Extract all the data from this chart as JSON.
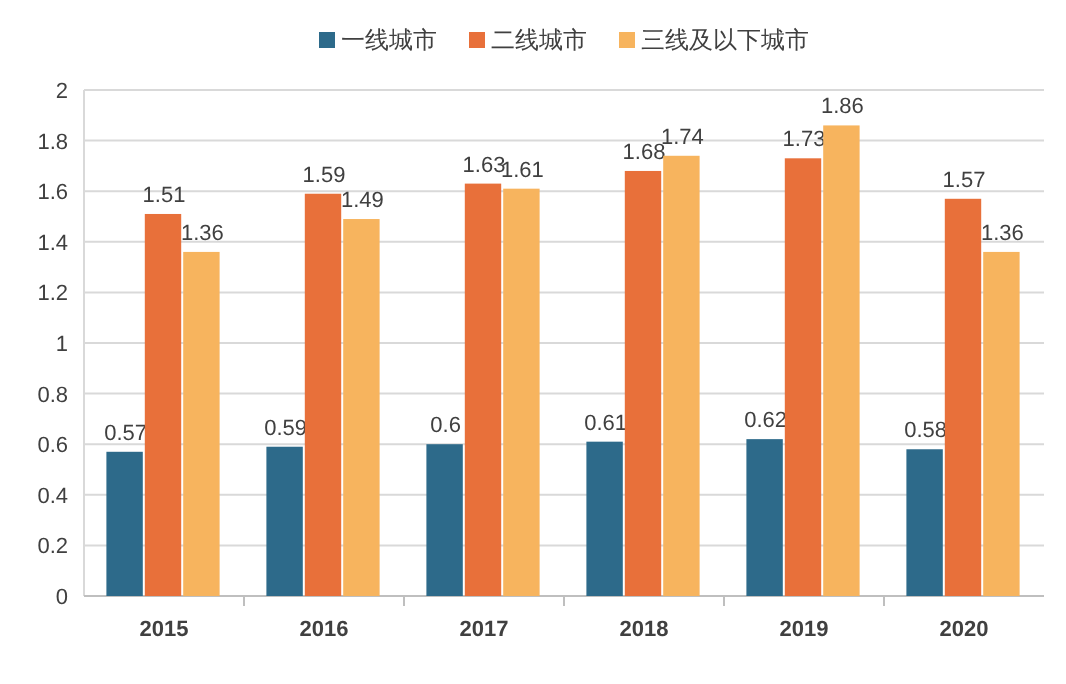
{
  "chart_data": {
    "type": "bar",
    "categories": [
      "2015",
      "2016",
      "2017",
      "2018",
      "2019",
      "2020"
    ],
    "series": [
      {
        "name": "一线城市",
        "color": "#2d6a8a",
        "values": [
          0.57,
          0.59,
          0.6,
          0.61,
          0.62,
          0.58
        ]
      },
      {
        "name": "二线城市",
        "color": "#e8703a",
        "values": [
          1.51,
          1.59,
          1.63,
          1.68,
          1.73,
          1.57
        ]
      },
      {
        "name": "三线及以下城市",
        "color": "#f7b45e",
        "values": [
          1.36,
          1.49,
          1.61,
          1.74,
          1.86,
          1.36
        ]
      }
    ],
    "ylim": [
      0,
      2
    ],
    "yticks": [
      0,
      0.2,
      0.4,
      0.6,
      0.8,
      1,
      1.2,
      1.4,
      1.6,
      1.8,
      2
    ],
    "grid": "y",
    "legend": "top",
    "data_labels": true
  }
}
